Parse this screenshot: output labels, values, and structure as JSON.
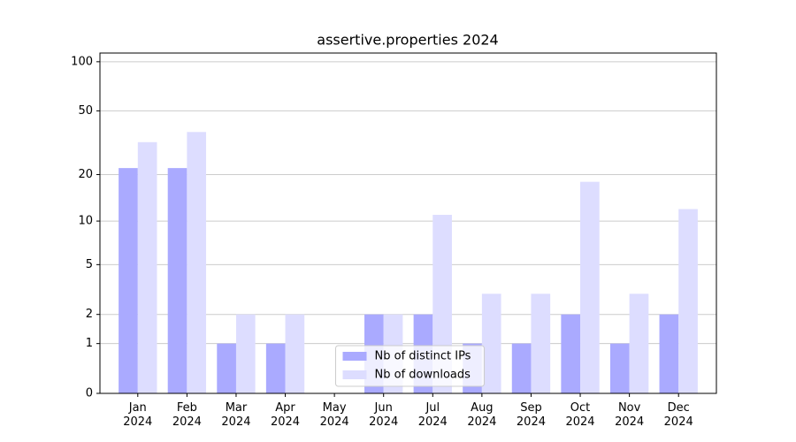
{
  "chart_data": {
    "type": "bar",
    "title": "assertive.properties 2024",
    "categories": [
      "Jan\n2024",
      "Feb\n2024",
      "Mar\n2024",
      "Apr\n2024",
      "May\n2024",
      "Jun\n2024",
      "Jul\n2024",
      "Aug\n2024",
      "Sep\n2024",
      "Oct\n2024",
      "Nov\n2024",
      "Dec\n2024"
    ],
    "series": [
      {
        "name": "Nb of distinct IPs",
        "color": "#aaaaff",
        "values": [
          22,
          22,
          1,
          1,
          0,
          2,
          2,
          1,
          1,
          2,
          1,
          2
        ]
      },
      {
        "name": "Nb of downloads",
        "color": "#ddddff",
        "values": [
          32,
          37,
          2,
          2,
          0,
          2,
          11,
          3,
          3,
          18,
          3,
          12
        ]
      }
    ],
    "yscale": "log1p",
    "ylim": [
      0,
      113
    ],
    "yticks": [
      0,
      1,
      2,
      5,
      10,
      20,
      50,
      100
    ],
    "grid": true,
    "legend": "lower center"
  }
}
